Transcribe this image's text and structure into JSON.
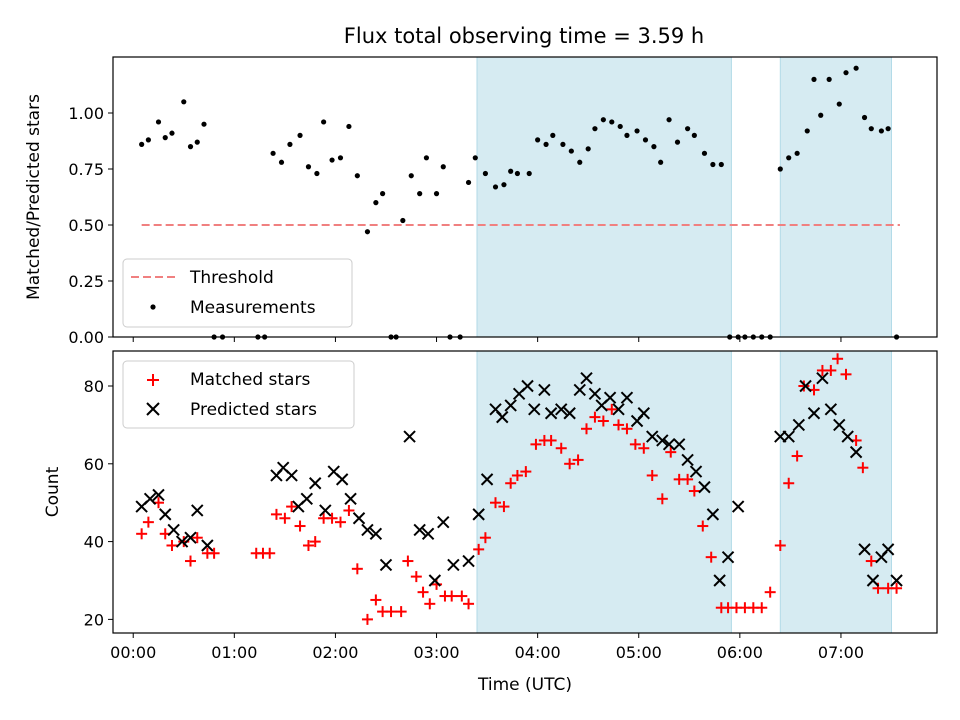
{
  "chart_data": [
    {
      "type": "scatter",
      "title": "Flux total observing time = 3.59 h",
      "xlabel": "",
      "ylabel": "Matched/Predicted stars",
      "xlim": [
        "23:48",
        "07:57"
      ],
      "ylim": [
        0,
        1.25
      ],
      "xticks": [
        "00:00",
        "01:00",
        "02:00",
        "03:00",
        "04:00",
        "05:00",
        "06:00",
        "07:00"
      ],
      "yticks": [
        "0.00",
        "0.25",
        "0.50",
        "0.75",
        "1.00"
      ],
      "grid": false,
      "legend_position": "lower-left",
      "shaded_intervals": [
        [
          "03:24",
          "05:55"
        ],
        [
          "06:24",
          "07:30"
        ]
      ],
      "threshold": {
        "name": "Threshold",
        "y": 0.5,
        "x_range": [
          "00:05",
          "07:35"
        ],
        "color": "#f08080"
      },
      "series": [
        {
          "name": "Measurements",
          "color": "#000000",
          "x": [
            "00:05",
            "00:09",
            "00:15",
            "00:19",
            "00:23",
            "00:30",
            "00:34",
            "00:38",
            "00:42",
            "00:48",
            "00:53",
            "01:14",
            "01:18",
            "01:23",
            "01:28",
            "01:33",
            "01:39",
            "01:44",
            "01:49",
            "01:53",
            "01:58",
            "02:03",
            "02:08",
            "02:13",
            "02:19",
            "02:24",
            "02:28",
            "02:33",
            "02:36",
            "02:40",
            "02:45",
            "02:50",
            "02:54",
            "03:00",
            "03:04",
            "03:08",
            "03:14",
            "03:19",
            "03:23",
            "03:29",
            "03:35",
            "03:40",
            "03:44",
            "03:48",
            "03:55",
            "04:00",
            "04:05",
            "04:09",
            "04:15",
            "04:20",
            "04:25",
            "04:30",
            "04:34",
            "04:39",
            "04:44",
            "04:49",
            "04:53",
            "04:59",
            "05:04",
            "05:09",
            "05:13",
            "05:18",
            "05:23",
            "05:29",
            "05:33",
            "05:39",
            "05:44",
            "05:49",
            "05:54",
            "05:59",
            "06:03",
            "06:08",
            "06:13",
            "06:18",
            "06:24",
            "06:29",
            "06:34",
            "06:40",
            "06:44",
            "06:48",
            "06:53",
            "06:59",
            "07:03",
            "07:09",
            "07:14",
            "07:18",
            "07:24",
            "07:28",
            "07:33"
          ],
          "y": [
            0.86,
            0.88,
            0.96,
            0.89,
            0.91,
            1.05,
            0.85,
            0.87,
            0.95,
            0.0,
            0.0,
            0.0,
            0.0,
            0.82,
            0.78,
            0.86,
            0.9,
            0.76,
            0.73,
            0.96,
            0.79,
            0.8,
            0.94,
            0.72,
            0.47,
            0.6,
            0.64,
            0.0,
            0.0,
            0.52,
            0.72,
            0.64,
            0.8,
            0.64,
            0.76,
            0.0,
            0.0,
            0.69,
            0.8,
            0.73,
            0.67,
            0.68,
            0.74,
            0.73,
            0.73,
            0.88,
            0.86,
            0.9,
            0.86,
            0.83,
            0.78,
            0.84,
            0.93,
            0.97,
            0.96,
            0.94,
            0.9,
            0.92,
            0.88,
            0.85,
            0.78,
            0.97,
            0.87,
            0.93,
            0.9,
            0.82,
            0.77,
            0.77,
            0.0,
            0.0,
            0.0,
            0.0,
            0.0,
            0.0,
            0.75,
            0.8,
            0.82,
            0.92,
            1.15,
            0.99,
            1.15,
            1.04,
            1.18,
            1.2,
            0.98,
            0.93,
            0.92,
            0.93,
            0.0
          ]
        }
      ]
    },
    {
      "type": "scatter",
      "title": "",
      "xlabel": "Time (UTC)",
      "ylabel": "Count",
      "xlim": [
        "23:48",
        "07:57"
      ],
      "ylim": [
        16.5,
        89
      ],
      "xticks": [
        "00:00",
        "01:00",
        "02:00",
        "03:00",
        "04:00",
        "05:00",
        "06:00",
        "07:00"
      ],
      "yticks": [
        "20",
        "40",
        "60",
        "80"
      ],
      "grid": false,
      "legend_position": "upper-left",
      "shaded_intervals": [
        [
          "03:24",
          "05:55"
        ],
        [
          "06:24",
          "07:30"
        ]
      ],
      "series": [
        {
          "name": "Matched stars",
          "marker": "+",
          "color": "#ff0000",
          "x": [
            "00:05",
            "00:09",
            "00:15",
            "00:19",
            "00:23",
            "00:30",
            "00:34",
            "00:38",
            "00:44",
            "00:48",
            "01:13",
            "01:17",
            "01:21",
            "01:25",
            "01:30",
            "01:34",
            "01:39",
            "01:44",
            "01:48",
            "01:53",
            "01:58",
            "02:03",
            "02:08",
            "02:13",
            "02:19",
            "02:24",
            "02:28",
            "02:33",
            "02:39",
            "02:43",
            "02:48",
            "02:52",
            "02:56",
            "03:00",
            "03:05",
            "03:09",
            "03:15",
            "03:19",
            "03:25",
            "03:29",
            "03:35",
            "03:40",
            "03:44",
            "03:48",
            "03:53",
            "03:59",
            "04:04",
            "04:08",
            "04:14",
            "04:19",
            "04:24",
            "04:29",
            "04:34",
            "04:39",
            "04:44",
            "04:48",
            "04:53",
            "04:58",
            "05:03",
            "05:08",
            "05:14",
            "05:19",
            "05:24",
            "05:29",
            "05:33",
            "05:38",
            "05:43",
            "05:49",
            "05:53",
            "05:58",
            "06:03",
            "06:08",
            "06:13",
            "06:18",
            "06:24",
            "06:29",
            "06:34",
            "06:38",
            "06:44",
            "06:49",
            "06:54",
            "06:58",
            "07:03",
            "07:09",
            "07:13",
            "07:18",
            "07:22",
            "07:28",
            "07:33"
          ],
          "y": [
            42,
            45,
            50,
            42,
            39,
            40,
            35,
            41,
            37,
            37,
            37,
            37,
            37,
            47,
            46,
            49,
            44,
            39,
            40,
            46,
            46,
            45,
            48,
            33,
            20,
            25,
            22,
            22,
            22,
            35,
            31,
            27,
            24,
            29,
            26,
            26,
            26,
            24,
            38,
            41,
            50,
            49,
            55,
            57,
            58,
            65,
            66,
            66,
            64,
            60,
            61,
            69,
            72,
            71,
            74,
            70,
            69,
            65,
            64,
            57,
            51,
            63,
            56,
            56,
            53,
            44,
            36,
            23,
            23,
            23,
            23,
            23,
            23,
            27,
            39,
            55,
            62,
            80,
            79,
            84,
            84,
            87,
            83,
            66,
            59,
            35,
            28,
            28,
            28
          ]
        },
        {
          "name": "Predicted stars",
          "marker": "x",
          "color": "#000000",
          "x": [
            "00:05",
            "00:10",
            "00:15",
            "00:19",
            "00:24",
            "00:29",
            "00:34",
            "00:38",
            "00:44",
            "01:25",
            "01:29",
            "01:34",
            "01:38",
            "01:43",
            "01:48",
            "01:54",
            "01:59",
            "02:04",
            "02:09",
            "02:14",
            "02:19",
            "02:24",
            "02:30",
            "02:44",
            "02:50",
            "02:55",
            "02:59",
            "03:04",
            "03:10",
            "03:19",
            "03:25",
            "03:30",
            "03:35",
            "03:39",
            "03:44",
            "03:49",
            "03:54",
            "03:58",
            "04:04",
            "04:08",
            "04:14",
            "04:19",
            "04:25",
            "04:29",
            "04:34",
            "04:38",
            "04:43",
            "04:48",
            "04:53",
            "04:59",
            "05:03",
            "05:08",
            "05:14",
            "05:18",
            "05:24",
            "05:29",
            "05:34",
            "05:39",
            "05:44",
            "05:48",
            "05:53",
            "05:59",
            "06:24",
            "06:29",
            "06:35",
            "06:39",
            "06:44",
            "06:49",
            "06:54",
            "06:59",
            "07:04",
            "07:09",
            "07:14",
            "07:19",
            "07:24",
            "07:28",
            "07:33"
          ],
          "y": [
            49,
            51,
            52,
            47,
            43,
            40,
            41,
            48,
            39,
            57,
            59,
            57,
            49,
            51,
            55,
            48,
            58,
            56,
            51,
            46,
            43,
            42,
            34,
            67,
            43,
            42,
            30,
            45,
            34,
            35,
            47,
            56,
            74,
            72,
            75,
            78,
            80,
            74,
            79,
            73,
            74,
            73,
            79,
            82,
            78,
            75,
            77,
            74,
            77,
            71,
            73,
            67,
            66,
            65,
            65,
            61,
            58,
            54,
            47,
            30,
            36,
            49,
            67,
            67,
            70,
            80,
            73,
            82,
            74,
            70,
            67,
            63,
            38,
            30,
            36,
            38,
            30
          ]
        }
      ]
    }
  ]
}
